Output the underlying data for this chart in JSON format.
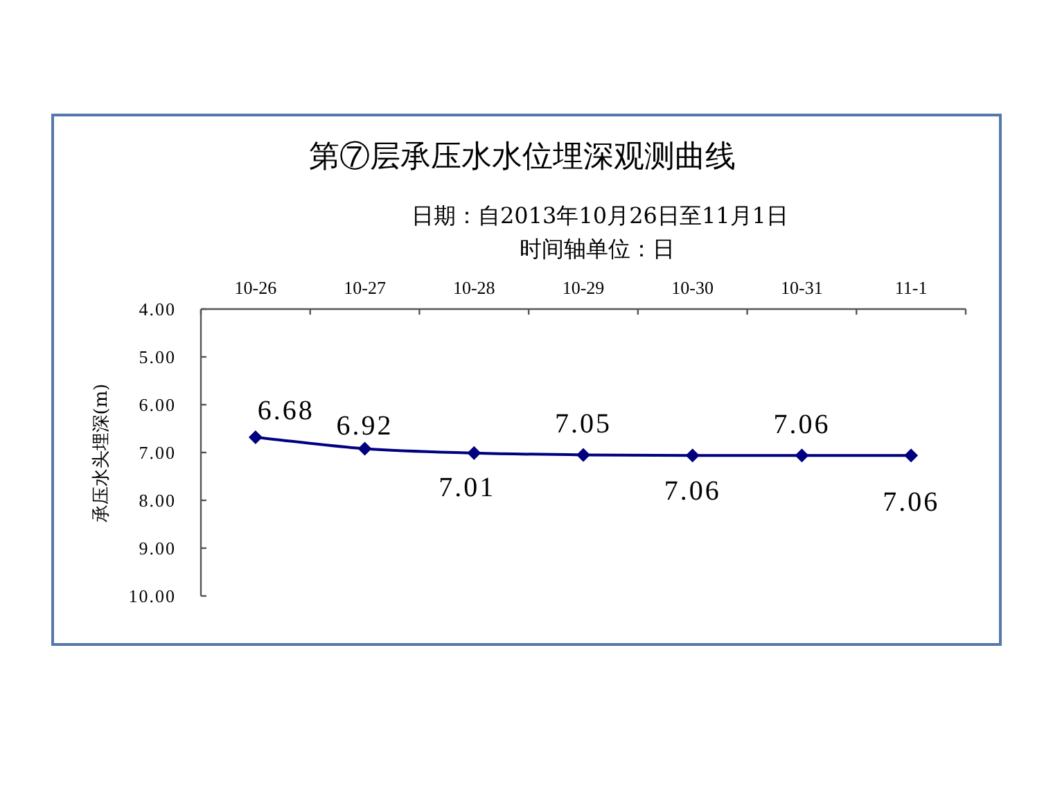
{
  "chart_data": {
    "type": "line",
    "title": "第⑦层承压水水位埋深观测曲线",
    "subtitle": "日期：自2013年10月26日至11月1日",
    "annotations": [
      "时间轴单位：日"
    ],
    "ylabel": "承压水头埋深(m)",
    "categories": [
      "10-26",
      "10-27",
      "10-28",
      "10-29",
      "10-30",
      "10-31",
      "11-1"
    ],
    "series": [
      {
        "color": "#000080",
        "values": [
          6.68,
          6.92,
          7.01,
          7.05,
          7.06,
          7.06,
          7.06
        ]
      }
    ],
    "ylim": [
      10,
      4
    ],
    "yticks": [
      {
        "value": 4,
        "label": "4.00"
      },
      {
        "value": 5,
        "label": "5.00"
      },
      {
        "value": 6,
        "label": "6.00"
      },
      {
        "value": 7,
        "label": "7.00"
      },
      {
        "value": 8,
        "label": "8.00"
      },
      {
        "value": 9,
        "label": "9.00"
      },
      {
        "value": 10,
        "label": "10.00"
      }
    ],
    "data_labels": true,
    "marker": "diamond",
    "line_style": "solid"
  }
}
